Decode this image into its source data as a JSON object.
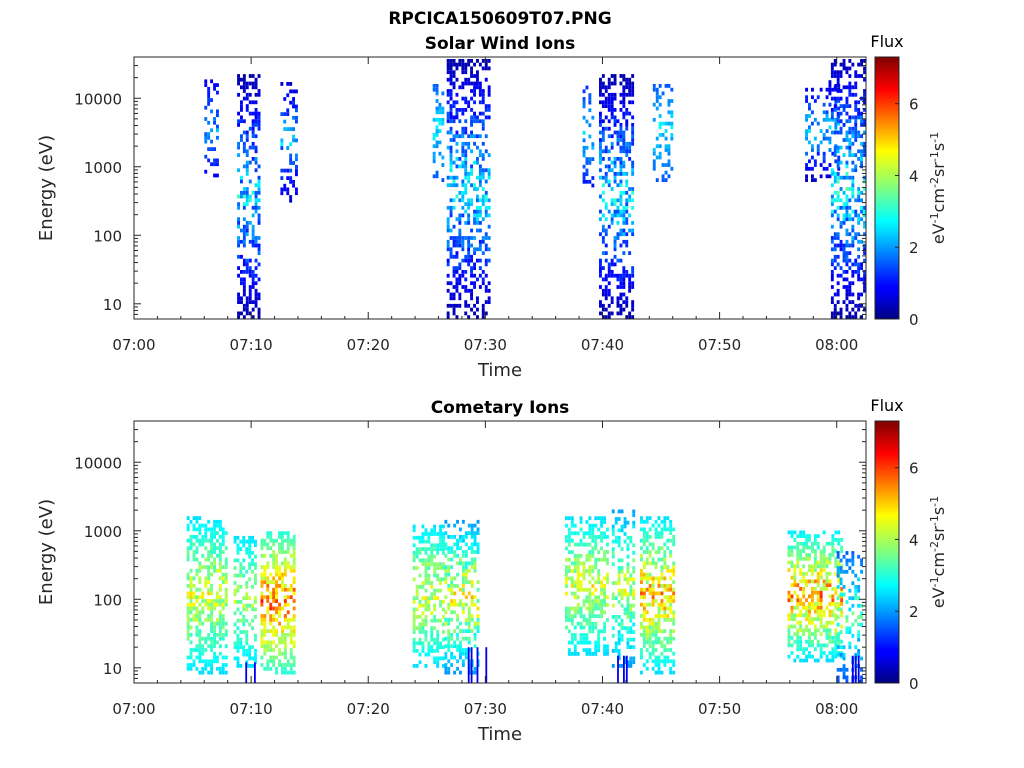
{
  "page": {
    "title": "RPCICA150609T07.PNG"
  },
  "chart_data": [
    {
      "type": "heatmap",
      "title": "Solar Wind Ions",
      "xlabel": "Time",
      "ylabel": "Energy (eV)",
      "x_tick_labels": [
        "07:00",
        "07:10",
        "07:20",
        "07:30",
        "07:40",
        "07:50",
        "08:00"
      ],
      "x_ticks_min": [
        0,
        10,
        20,
        30,
        40,
        50,
        60
      ],
      "xlim_min": [
        0,
        62.5
      ],
      "y_scale": "log",
      "y_tick_labels": [
        "10",
        "100",
        "1000",
        "10000"
      ],
      "y_ticks": [
        10,
        100,
        1000,
        10000
      ],
      "ylim": [
        6,
        40000
      ],
      "colorbar": {
        "title": "Flux",
        "label": "eV-1cm-2sr-1s-1",
        "range": [
          0,
          7.3
        ],
        "tick_labels": [
          "0",
          "2",
          "4",
          "6"
        ],
        "ticks": [
          0,
          2,
          4,
          6
        ]
      },
      "bursts": [
        {
          "t": [
            6.0,
            7.2
          ],
          "e": [
            700,
            17000
          ],
          "level": [
            0.8,
            2.5
          ],
          "density": 0.35
        },
        {
          "t": [
            8.8,
            10.8
          ],
          "e": [
            6,
            20000
          ],
          "level": [
            0.3,
            3.2
          ],
          "density": 0.45
        },
        {
          "t": [
            12.5,
            13.8
          ],
          "e": [
            300,
            16000
          ],
          "level": [
            0.5,
            2.8
          ],
          "density": 0.35
        },
        {
          "t": [
            25.5,
            26.5
          ],
          "e": [
            600,
            17000
          ],
          "level": [
            1.5,
            3.0
          ],
          "density": 0.3
        },
        {
          "t": [
            26.7,
            30.3
          ],
          "e": [
            6,
            35000
          ],
          "level": [
            0.3,
            3.3
          ],
          "density": 0.45
        },
        {
          "t": [
            38.3,
            39.3
          ],
          "e": [
            500,
            17000
          ],
          "level": [
            1.0,
            3.0
          ],
          "density": 0.3
        },
        {
          "t": [
            39.7,
            42.6
          ],
          "e": [
            6,
            20000
          ],
          "level": [
            0.3,
            3.3
          ],
          "density": 0.45
        },
        {
          "t": [
            44.3,
            46.0
          ],
          "e": [
            600,
            15000
          ],
          "level": [
            1.5,
            3.0
          ],
          "density": 0.3
        },
        {
          "t": [
            57.3,
            60.2
          ],
          "e": [
            600,
            17000
          ],
          "level": [
            0.5,
            3.0
          ],
          "density": 0.3
        },
        {
          "t": [
            59.5,
            62.3
          ],
          "e": [
            6,
            40000
          ],
          "level": [
            0.3,
            3.5
          ],
          "density": 0.45
        }
      ]
    },
    {
      "type": "heatmap",
      "title": "Cometary Ions",
      "xlabel": "Time",
      "ylabel": "Energy (eV)",
      "x_tick_labels": [
        "07:00",
        "07:10",
        "07:20",
        "07:30",
        "07:40",
        "07:50",
        "08:00"
      ],
      "x_ticks_min": [
        0,
        10,
        20,
        30,
        40,
        50,
        60
      ],
      "xlim_min": [
        0,
        62.5
      ],
      "y_scale": "log",
      "y_tick_labels": [
        "10",
        "100",
        "1000",
        "10000"
      ],
      "y_ticks": [
        10,
        100,
        1000,
        10000
      ],
      "ylim": [
        6,
        40000
      ],
      "colorbar": {
        "title": "Flux",
        "label": "eV-1cm-2sr-1s-1",
        "range": [
          0,
          7.3
        ],
        "tick_labels": [
          "0",
          "2",
          "4",
          "6"
        ],
        "ticks": [
          0,
          2,
          4,
          6
        ]
      },
      "bursts": [
        {
          "t": [
            4.5,
            8.0
          ],
          "e": [
            8,
            1500
          ],
          "level": [
            2.5,
            5.0
          ],
          "density": 0.55
        },
        {
          "t": [
            8.5,
            10.5
          ],
          "e": [
            10,
            800
          ],
          "level": [
            2.5,
            4.5
          ],
          "density": 0.45
        },
        {
          "t": [
            10.8,
            13.8
          ],
          "e": [
            8,
            900
          ],
          "level": [
            3.0,
            6.5
          ],
          "density": 0.6
        },
        {
          "t": [
            23.8,
            26.5
          ],
          "e": [
            10,
            1200
          ],
          "level": [
            2.5,
            5.0
          ],
          "density": 0.5
        },
        {
          "t": [
            26.5,
            29.5
          ],
          "e": [
            8,
            1300
          ],
          "level": [
            2.0,
            5.5
          ],
          "density": 0.5
        },
        {
          "t": [
            36.8,
            40.5
          ],
          "e": [
            15,
            1500
          ],
          "level": [
            2.5,
            5.0
          ],
          "density": 0.5
        },
        {
          "t": [
            40.8,
            42.6
          ],
          "e": [
            10,
            2000
          ],
          "level": [
            2.0,
            5.0
          ],
          "density": 0.45
        },
        {
          "t": [
            43.2,
            46.2
          ],
          "e": [
            8,
            1500
          ],
          "level": [
            2.5,
            6.0
          ],
          "density": 0.55
        },
        {
          "t": [
            55.8,
            60.5
          ],
          "e": [
            12,
            1000
          ],
          "level": [
            2.5,
            6.3
          ],
          "density": 0.55
        },
        {
          "t": [
            60.0,
            62.2
          ],
          "e": [
            6,
            500
          ],
          "level": [
            1.5,
            4.0
          ],
          "density": 0.4
        }
      ],
      "low_energy_streaks": [
        {
          "t": [
            9.5,
            10.5
          ],
          "e": [
            6,
            12
          ],
          "level": 0.8
        },
        {
          "t": [
            28.5,
            30.2
          ],
          "e": [
            6,
            20
          ],
          "level": 0.8
        },
        {
          "t": [
            41.0,
            42.5
          ],
          "e": [
            6,
            15
          ],
          "level": 0.8
        },
        {
          "t": [
            61.3,
            62.2
          ],
          "e": [
            6,
            15
          ],
          "level": 0.8
        }
      ]
    }
  ]
}
